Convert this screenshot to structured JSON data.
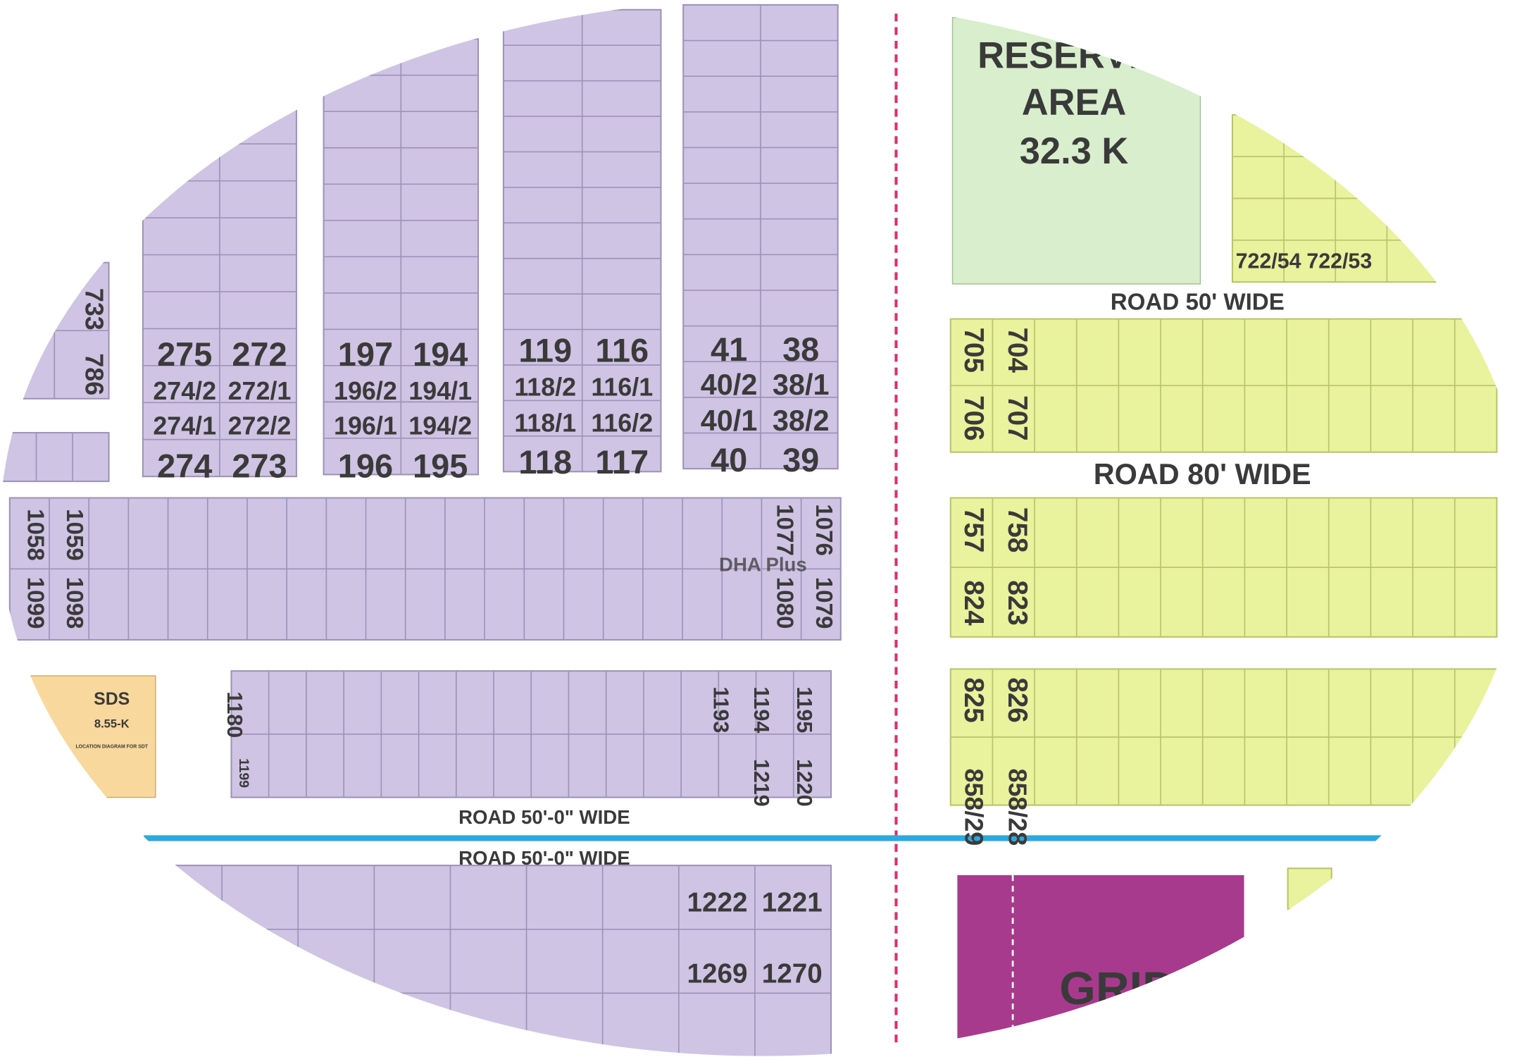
{
  "watermark": "DHA Plus",
  "roads": [
    "ROAD 50' WIDE",
    "ROAD 80' WIDE",
    "ROAD 50'-0\" WIDE",
    "ROAD 50'-0\" WIDE"
  ],
  "areas": {
    "reserved": {
      "title": "RESERVED",
      "subtitle": "AREA",
      "size": "32.3 K"
    },
    "sds": {
      "title": "SDS",
      "size": "8.55-K",
      "note": "LOCATION DIAGRAM FOR SDT"
    },
    "grid": "GRID"
  },
  "plots": [
    "275",
    "272",
    "274/2",
    "272/1",
    "274/1",
    "272/2",
    "274",
    "273",
    "197",
    "194",
    "196/2",
    "194/1",
    "196/1",
    "194/2",
    "196",
    "195",
    "119",
    "116",
    "118/2",
    "116/1",
    "118/1",
    "116/2",
    "118",
    "117",
    "41",
    "38",
    "40/2",
    "38/1",
    "40/1",
    "38/2",
    "40",
    "39",
    "733",
    "786",
    "1058",
    "1059",
    "1099",
    "1098",
    "1077",
    "1076",
    "1080",
    "1079",
    "705",
    "704",
    "706",
    "707",
    "757",
    "758",
    "824",
    "823",
    "825",
    "826",
    "858/29",
    "858/28",
    "1180",
    "1199",
    "1193",
    "1194",
    "1195",
    "1219",
    "1220",
    "722/54",
    "722/53",
    "1222",
    "1221",
    "1269",
    "1270"
  ]
}
